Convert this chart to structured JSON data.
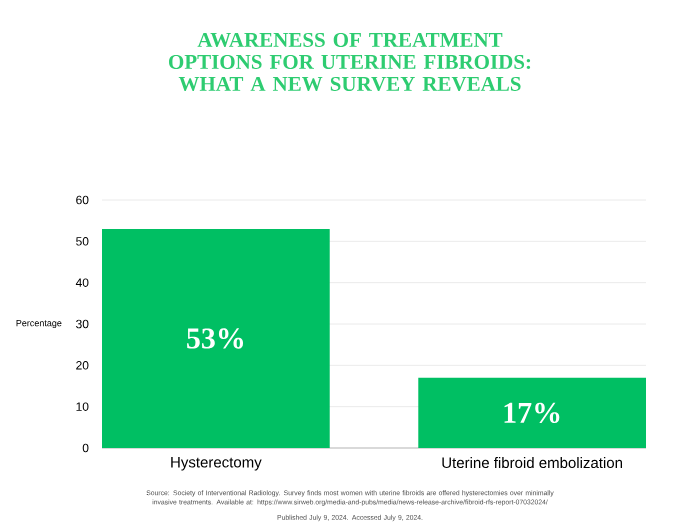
{
  "chart_data": {
    "type": "bar",
    "title": "AWARENESS OF TREATMENT OPTIONS FOR UTERINE FIBROIDS: WHAT A NEW SURVEY REVEALS",
    "ylabel": "Percentage",
    "categories": [
      "Hysterectomy",
      "Uterine fibroid embolization"
    ],
    "values": [
      53,
      17
    ],
    "value_labels": [
      "53%",
      "17%"
    ],
    "color": "#00bf63",
    "ylim": [
      0,
      60
    ],
    "yticks": [
      0,
      10,
      20,
      30,
      40,
      50,
      60
    ],
    "grid": "y",
    "annotations": [
      "Source: Society of Interventional Radiology. Survey finds most women with uterine fibroids are offered hysterectomies over minimally invasive treatments. Available at: https://www.sirweb.org/media-and-pubs/media/news-release-archive/fibroid-rfs-report-07032024/",
      "Published July 9, 2024. Accessed July 9, 2024."
    ]
  }
}
